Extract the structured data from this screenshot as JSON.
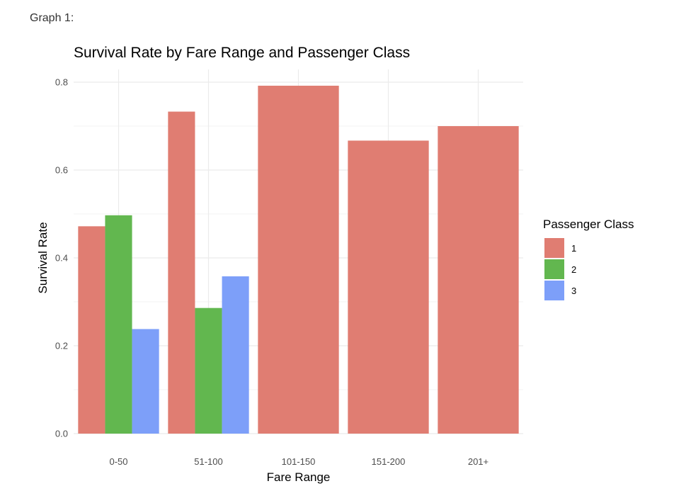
{
  "caption": "Graph 1:",
  "chart_data": {
    "type": "bar",
    "title": "Survival Rate by Fare Range and Passenger Class",
    "xlabel": "Fare Range",
    "ylabel": "Survival Rate",
    "categories": [
      "0-50",
      "51-100",
      "101-150",
      "151-200",
      "201+"
    ],
    "ylim": [
      0,
      0.8
    ],
    "yticks": [
      "0.0",
      "0.2",
      "0.4",
      "0.6",
      "0.8"
    ],
    "grid": true,
    "legend": {
      "title": "Passenger Class",
      "position": "right"
    },
    "series": [
      {
        "name": "1",
        "color": "#e07d72",
        "values": [
          0.472,
          0.733,
          0.792,
          0.667,
          0.7
        ]
      },
      {
        "name": "2",
        "color": "#62b74f",
        "values": [
          0.497,
          0.286,
          null,
          null,
          null
        ]
      },
      {
        "name": "3",
        "color": "#7d9ff9",
        "values": [
          0.238,
          0.358,
          null,
          null,
          null
        ]
      }
    ]
  }
}
